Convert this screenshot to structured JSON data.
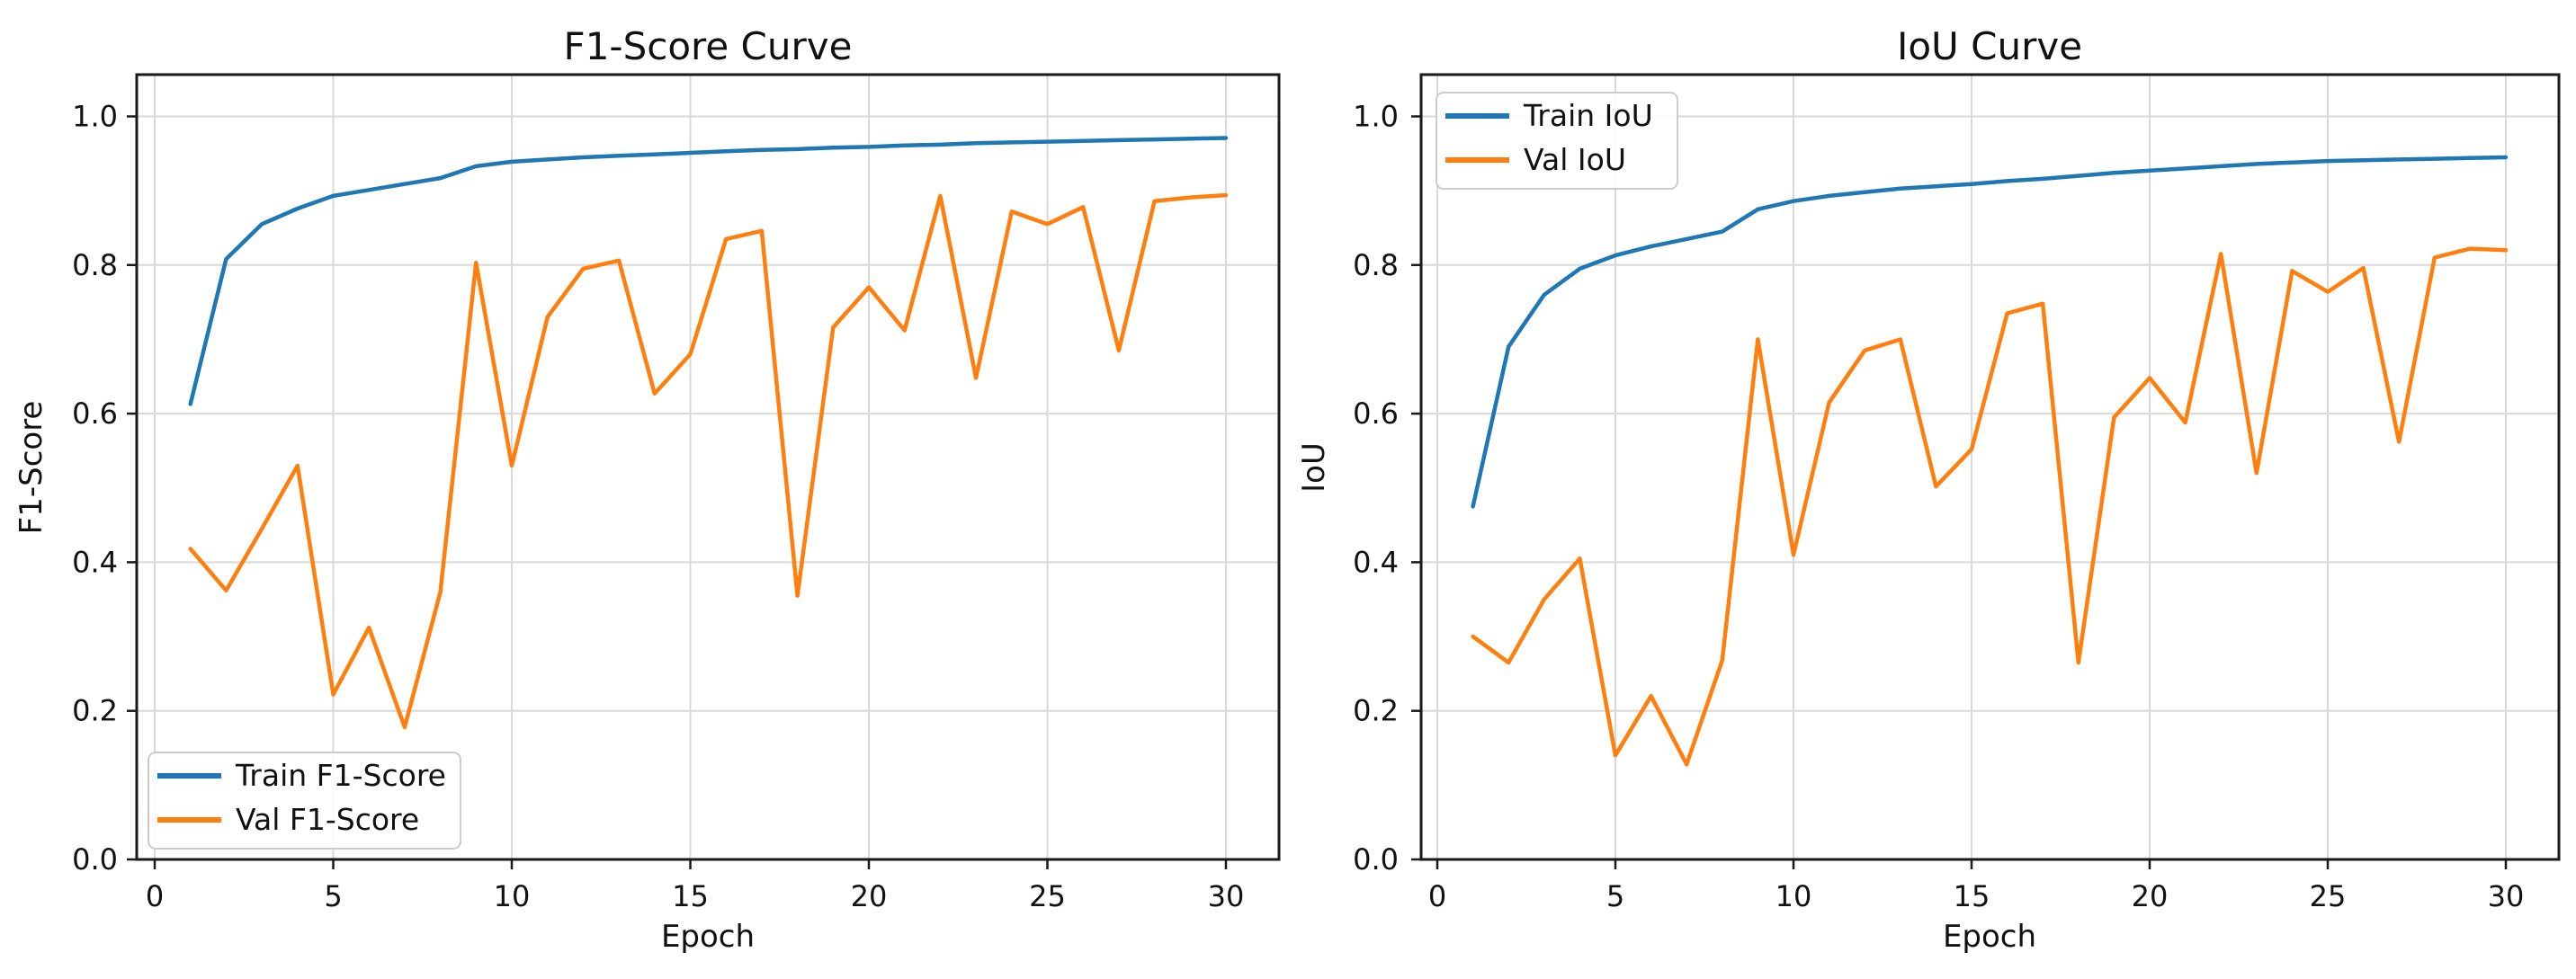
{
  "figure": {
    "background": "#ffffff",
    "text_color": "#111111",
    "grid_color": "#d9d9d9",
    "spine_color": "#1a1a1a",
    "train_color": "#1f77b4",
    "val_color": "#ff7f0e"
  },
  "chart_data": [
    {
      "type": "line",
      "title": "F1-Score Curve",
      "xlabel": "Epoch",
      "ylabel": "F1-Score",
      "x": [
        1,
        2,
        3,
        4,
        5,
        6,
        7,
        8,
        9,
        10,
        11,
        12,
        13,
        14,
        15,
        16,
        17,
        18,
        19,
        20,
        21,
        22,
        23,
        24,
        25,
        26,
        27,
        28,
        29,
        30
      ],
      "series": [
        {
          "name": "Train F1-Score",
          "color": "#1f77b4",
          "values": [
            0.613,
            0.808,
            0.855,
            0.876,
            0.893,
            0.901,
            0.909,
            0.917,
            0.933,
            0.939,
            0.942,
            0.945,
            0.947,
            0.949,
            0.951,
            0.953,
            0.955,
            0.956,
            0.958,
            0.959,
            0.961,
            0.962,
            0.964,
            0.965,
            0.966,
            0.967,
            0.968,
            0.969,
            0.97,
            0.971
          ]
        },
        {
          "name": "Val F1-Score",
          "color": "#ff7f0e",
          "values": [
            0.418,
            0.362,
            0.445,
            0.53,
            0.222,
            0.312,
            0.178,
            0.36,
            0.803,
            0.53,
            0.73,
            0.795,
            0.806,
            0.627,
            0.68,
            0.835,
            0.846,
            0.355,
            0.716,
            0.77,
            0.712,
            0.893,
            0.648,
            0.872,
            0.855,
            0.878,
            0.685,
            0.886,
            0.891,
            0.894
          ]
        }
      ],
      "xticks": [
        0,
        5,
        10,
        15,
        20,
        25,
        30
      ],
      "ytick_labels": [
        "0.0",
        "0.2",
        "0.4",
        "0.6",
        "0.8",
        "1.0"
      ],
      "yticks": [
        0.0,
        0.2,
        0.4,
        0.6,
        0.8,
        1.0
      ],
      "ylim": [
        0.0,
        1.056
      ],
      "xlim": [
        -0.5,
        31.5
      ],
      "grid": true,
      "legend_position": "lower-left"
    },
    {
      "type": "line",
      "title": "IoU Curve",
      "xlabel": "Epoch",
      "ylabel": "IoU",
      "x": [
        1,
        2,
        3,
        4,
        5,
        6,
        7,
        8,
        9,
        10,
        11,
        12,
        13,
        14,
        15,
        16,
        17,
        18,
        19,
        20,
        21,
        22,
        23,
        24,
        25,
        26,
        27,
        28,
        29,
        30
      ],
      "series": [
        {
          "name": "Train IoU",
          "color": "#1f77b4",
          "values": [
            0.475,
            0.69,
            0.76,
            0.795,
            0.813,
            0.825,
            0.835,
            0.845,
            0.875,
            0.886,
            0.893,
            0.898,
            0.903,
            0.906,
            0.909,
            0.913,
            0.916,
            0.92,
            0.924,
            0.927,
            0.93,
            0.933,
            0.936,
            0.938,
            0.94,
            0.941,
            0.942,
            0.943,
            0.944,
            0.945
          ]
        },
        {
          "name": "Val IoU",
          "color": "#ff7f0e",
          "values": [
            0.3,
            0.265,
            0.35,
            0.405,
            0.14,
            0.22,
            0.128,
            0.268,
            0.7,
            0.41,
            0.615,
            0.685,
            0.7,
            0.502,
            0.552,
            0.735,
            0.748,
            0.265,
            0.595,
            0.648,
            0.588,
            0.815,
            0.52,
            0.792,
            0.764,
            0.796,
            0.562,
            0.81,
            0.822,
            0.82
          ]
        }
      ],
      "xticks": [
        0,
        5,
        10,
        15,
        20,
        25,
        30
      ],
      "ytick_labels": [
        "0.0",
        "0.2",
        "0.4",
        "0.6",
        "0.8",
        "1.0"
      ],
      "yticks": [
        0.0,
        0.2,
        0.4,
        0.6,
        0.8,
        1.0
      ],
      "ylim": [
        0.0,
        1.056
      ],
      "xlim": [
        -0.5,
        31.9
      ],
      "grid": true,
      "legend_position": "upper-left"
    }
  ]
}
